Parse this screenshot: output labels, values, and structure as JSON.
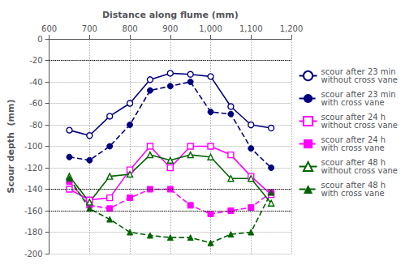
{
  "chart_data": {
    "type": "line",
    "xlabel": "Distance along flume (mm)",
    "ylabel": "Scour depth  (mm)",
    "x": [
      650,
      700,
      750,
      800,
      850,
      900,
      950,
      1000,
      1050,
      1100,
      1150
    ],
    "xlim": [
      600,
      1200
    ],
    "xticks": [
      600,
      700,
      800,
      900,
      1000,
      1100,
      1200
    ],
    "ylim": [
      -200,
      0
    ],
    "yticks": [
      0,
      -20,
      -40,
      -60,
      -80,
      -100,
      -120,
      -140,
      -160,
      -180,
      -200
    ],
    "grid": true,
    "legend": "right",
    "hlines": [
      -20,
      -140,
      -160
    ],
    "hline_color": "black",
    "series": [
      {
        "name": "scour after 23 min\nwithout cross vane",
        "color": "#000080",
        "line_style": "solid",
        "marker": "open circle",
        "values": [
          -85,
          -90,
          -72,
          -60,
          -38,
          -32,
          -33,
          -35,
          -63,
          -80,
          -83
        ]
      },
      {
        "name": "scour after 23 min\nwith cross vane",
        "color": "#000080",
        "line_style": "dashed",
        "marker": "circle",
        "values": [
          -110,
          -113,
          -100,
          -80,
          -48,
          -44,
          -40,
          -68,
          -70,
          -102,
          -120
        ]
      },
      {
        "name": "scour after 24 h\nwithout cross vane",
        "color": "#FF00FF",
        "line_style": "solid",
        "marker": "open square",
        "values": [
          -140,
          -150,
          -148,
          -122,
          -100,
          -120,
          -100,
          -100,
          -108,
          -128,
          -145
        ]
      },
      {
        "name": "scour after 24 h\nwith cross vane",
        "color": "#FF00FF",
        "line_style": "dashed",
        "marker": "square",
        "values": [
          -133,
          -155,
          -158,
          -148,
          -140,
          -140,
          -155,
          -163,
          -160,
          -157,
          -143
        ]
      },
      {
        "name": "scour after 48 h\nwithout cross vane",
        "color": "#006400",
        "line_style": "solid",
        "marker": "open triangle",
        "values": [
          -128,
          -152,
          -128,
          -126,
          -108,
          -113,
          -108,
          -110,
          -130,
          -130,
          -153
        ]
      },
      {
        "name": "scour after 48 h\nwith cross vane",
        "color": "#006400",
        "line_style": "dashed",
        "marker": "triangle",
        "values": [
          -130,
          -158,
          -168,
          -180,
          -183,
          -185,
          -185,
          -190,
          -182,
          -180,
          -143
        ]
      }
    ]
  }
}
